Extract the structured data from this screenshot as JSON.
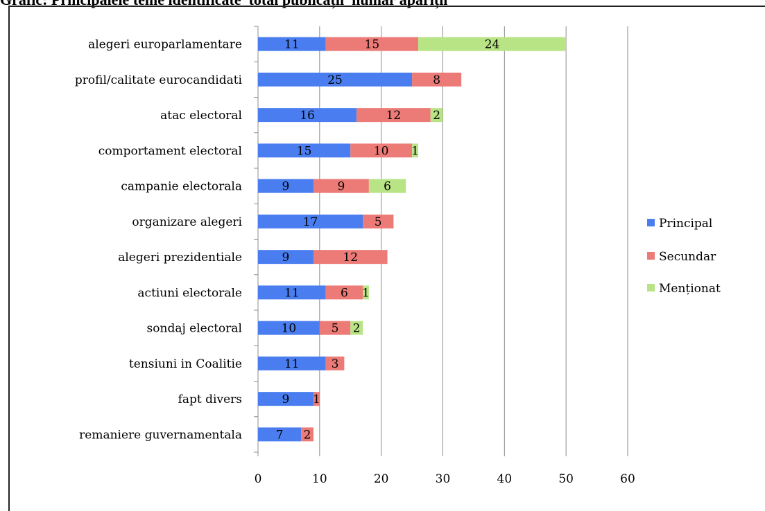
{
  "chart_data": {
    "type": "bar",
    "orientation": "horizontal",
    "stacked": true,
    "title": "Grafic: Principalele teme identificate_total publicații_număr apariții",
    "categories": [
      "alegeri europarlamentare",
      "profil/calitate eurocandidati",
      "atac electoral",
      "comportament electoral",
      "campanie electorala",
      "organizare alegeri",
      "alegeri prezidentiale",
      "actiuni electorale",
      "sondaj electoral",
      "tensiuni in Coalitie",
      "fapt divers",
      "remaniere guvernamentala"
    ],
    "series": [
      {
        "name": "Principal",
        "color": "#4a7ef0",
        "values": [
          11,
          25,
          16,
          15,
          9,
          17,
          9,
          11,
          10,
          11,
          9,
          7
        ]
      },
      {
        "name": "Secundar",
        "color": "#ec7b77",
        "values": [
          15,
          8,
          12,
          10,
          9,
          5,
          12,
          6,
          5,
          3,
          1,
          2
        ]
      },
      {
        "name": "Menționat",
        "color": "#b9e486",
        "values": [
          24,
          0,
          2,
          1,
          6,
          0,
          0,
          1,
          2,
          0,
          0,
          0
        ]
      }
    ],
    "xlim": [
      0,
      60
    ],
    "xticks": [
      0,
      10,
      20,
      30,
      40,
      50,
      60
    ],
    "grid": true,
    "legend_position": "right"
  }
}
